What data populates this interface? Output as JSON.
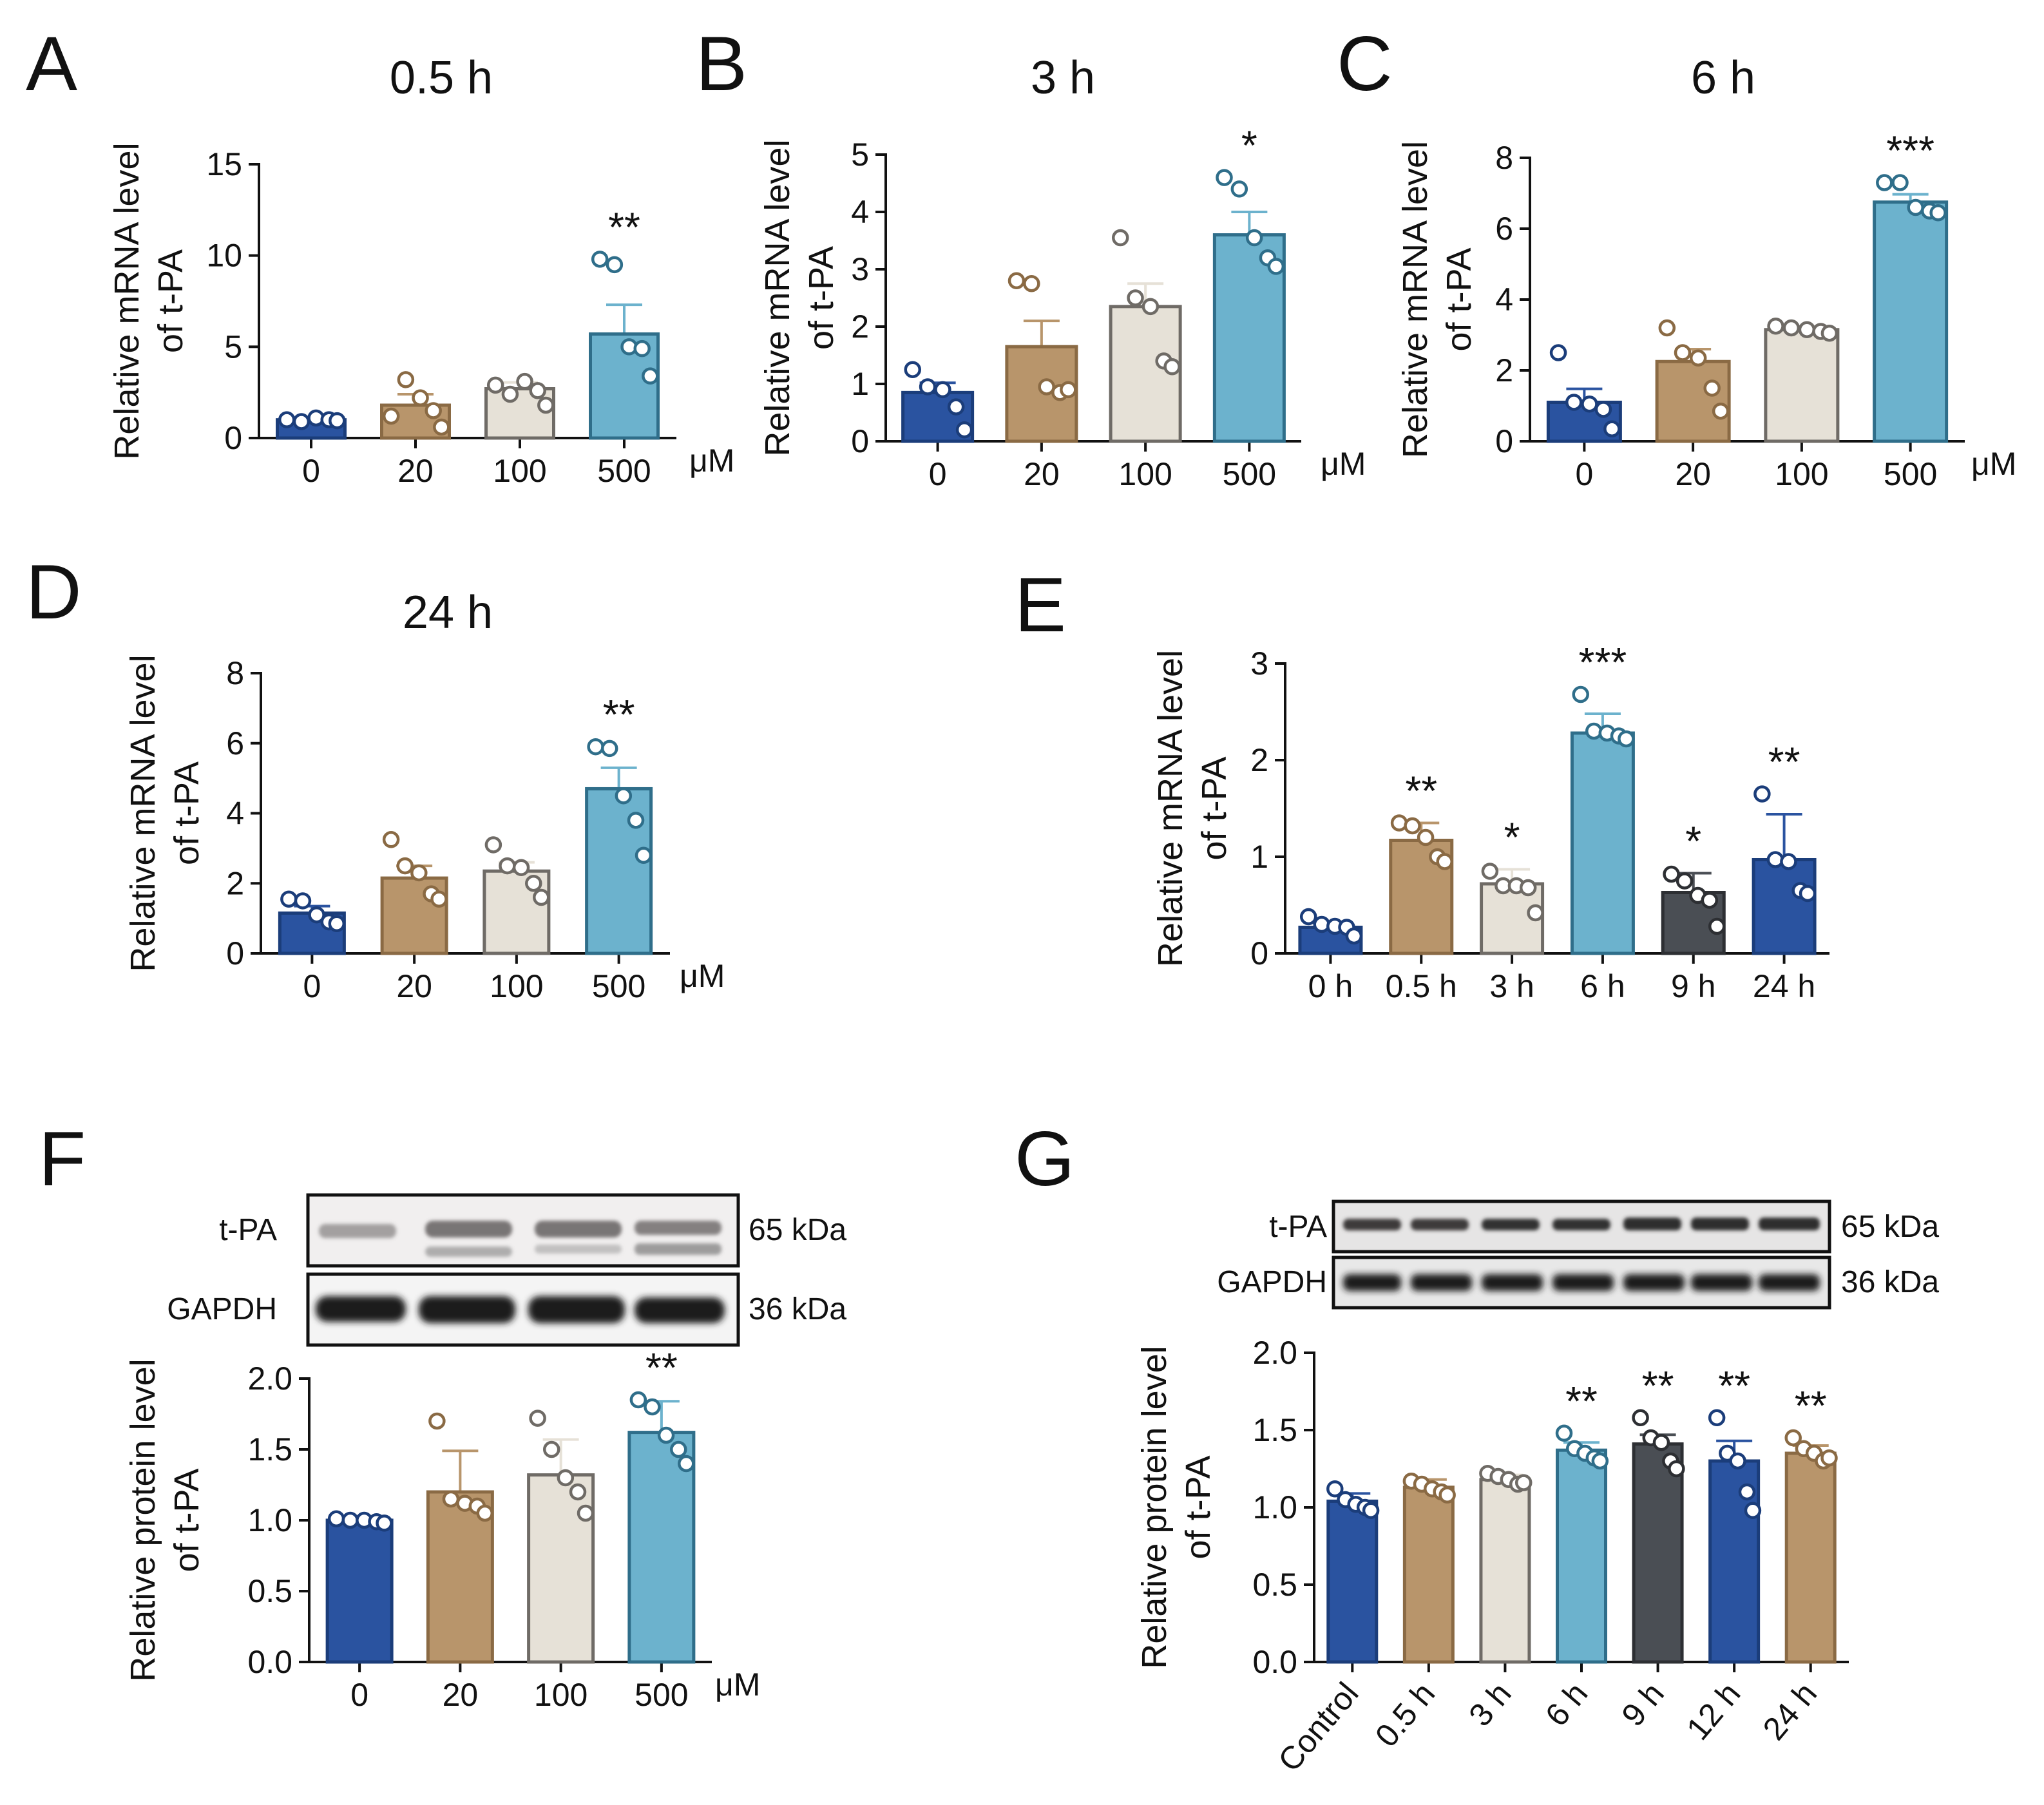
{
  "colors": {
    "dark_blue": "#2a53a0",
    "brown": "#b8956b",
    "beige": "#e6e1d7",
    "light_blue": "#6cb2cd",
    "dark_gray": "#4a4e54"
  },
  "chart_data": [
    {
      "panel": "A",
      "type": "bar",
      "title": "0.5 h",
      "ylabel": [
        "Relative mRNA level",
        "of t-PA"
      ],
      "categories": [
        "0",
        "20",
        "100",
        "500"
      ],
      "unit": "μM",
      "ylim": [
        0,
        15
      ],
      "yticks": [
        "0",
        "5",
        "10",
        "15"
      ],
      "values": [
        1.0,
        1.8,
        2.7,
        5.7
      ],
      "errors": [
        0.1,
        0.6,
        0.35,
        1.6
      ],
      "points": [
        [
          1.0,
          0.9,
          1.1,
          1.0,
          0.95
        ],
        [
          1.2,
          3.2,
          2.2,
          1.5,
          0.6
        ],
        [
          2.9,
          2.4,
          3.1,
          2.6,
          1.8
        ],
        [
          9.8,
          9.5,
          5.0,
          4.9,
          3.4
        ]
      ],
      "significance": [
        "",
        "",
        "",
        "**"
      ],
      "colors": [
        "dark_blue",
        "brown",
        "beige",
        "light_blue"
      ]
    },
    {
      "panel": "B",
      "type": "bar",
      "title": "3 h",
      "ylabel": [
        "Relative mRNA level",
        "of t-PA"
      ],
      "categories": [
        "0",
        "20",
        "100",
        "500"
      ],
      "unit": "μM",
      "ylim": [
        0,
        5
      ],
      "yticks": [
        "0",
        "1",
        "2",
        "3",
        "4",
        "5"
      ],
      "values": [
        0.85,
        1.65,
        2.35,
        3.6
      ],
      "errors": [
        0.17,
        0.45,
        0.4,
        0.4
      ],
      "points": [
        [
          1.25,
          0.95,
          0.9,
          0.6,
          0.2
        ],
        [
          2.8,
          2.75,
          0.95,
          0.85,
          0.9
        ],
        [
          3.55,
          2.5,
          2.35,
          1.4,
          1.3
        ],
        [
          4.6,
          4.4,
          3.55,
          3.2,
          3.05
        ]
      ],
      "significance": [
        "",
        "",
        "",
        "*"
      ],
      "colors": [
        "dark_blue",
        "brown",
        "beige",
        "light_blue"
      ]
    },
    {
      "panel": "C",
      "type": "bar",
      "title": "6 h",
      "ylabel": [
        "Relative mRNA level",
        "of t-PA"
      ],
      "categories": [
        "0",
        "20",
        "100",
        "500"
      ],
      "unit": "μM",
      "ylim": [
        0,
        8
      ],
      "yticks": [
        "0",
        "2",
        "4",
        "6",
        "8"
      ],
      "values": [
        1.1,
        2.25,
        3.15,
        6.75
      ],
      "errors": [
        0.38,
        0.35,
        0.07,
        0.22
      ],
      "points": [
        [
          2.5,
          1.1,
          1.05,
          0.9,
          0.35
        ],
        [
          3.2,
          2.5,
          2.35,
          1.5,
          0.85
        ],
        [
          3.25,
          3.2,
          3.15,
          3.1,
          3.05
        ],
        [
          7.3,
          7.3,
          6.6,
          6.5,
          6.45
        ]
      ],
      "significance": [
        "",
        "",
        "",
        "***"
      ],
      "colors": [
        "dark_blue",
        "brown",
        "beige",
        "light_blue"
      ]
    },
    {
      "panel": "D",
      "type": "bar",
      "title": "24 h",
      "ylabel": [
        "Relative mRNA level",
        "of t-PA"
      ],
      "categories": [
        "0",
        "20",
        "100",
        "500"
      ],
      "unit": "μM",
      "ylim": [
        0,
        8
      ],
      "yticks": [
        "0",
        "2",
        "4",
        "6",
        "8"
      ],
      "values": [
        1.15,
        2.15,
        2.35,
        4.7
      ],
      "errors": [
        0.2,
        0.35,
        0.25,
        0.6
      ],
      "points": [
        [
          1.55,
          1.5,
          1.1,
          0.9,
          0.85
        ],
        [
          3.25,
          2.5,
          2.3,
          1.7,
          1.55
        ],
        [
          3.1,
          2.5,
          2.45,
          2.0,
          1.6
        ],
        [
          5.9,
          5.85,
          4.5,
          3.8,
          2.8
        ]
      ],
      "significance": [
        "",
        "",
        "",
        "**"
      ],
      "colors": [
        "dark_blue",
        "brown",
        "beige",
        "light_blue"
      ]
    },
    {
      "panel": "E",
      "type": "bar",
      "ylabel": [
        "Relative mRNA level",
        "of t-PA"
      ],
      "categories": [
        "0 h",
        "0.5 h",
        "3 h",
        "6 h",
        "9 h",
        "24 h"
      ],
      "ylim": [
        0,
        3
      ],
      "yticks": [
        "0",
        "1",
        "2",
        "3"
      ],
      "values": [
        0.27,
        1.17,
        0.72,
        2.28,
        0.63,
        0.97
      ],
      "errors": [
        0.05,
        0.18,
        0.15,
        0.2,
        0.2,
        0.47
      ],
      "points": [
        [
          0.38,
          0.3,
          0.28,
          0.27,
          0.18
        ],
        [
          1.35,
          1.32,
          1.2,
          1.0,
          0.95
        ],
        [
          0.85,
          0.7,
          0.7,
          0.68,
          0.42
        ],
        [
          2.68,
          2.3,
          2.28,
          2.25,
          2.22
        ],
        [
          0.82,
          0.75,
          0.6,
          0.55,
          0.28
        ],
        [
          1.65,
          0.97,
          0.95,
          0.65,
          0.62
        ]
      ],
      "significance": [
        "",
        "**",
        "*",
        "***",
        "*",
        "**"
      ],
      "colors": [
        "dark_blue",
        "brown",
        "beige",
        "light_blue",
        "dark_gray",
        "dark_blue"
      ]
    },
    {
      "panel": "F",
      "type": "bar",
      "ylabel": [
        "Relative protein level",
        "of t-PA"
      ],
      "categories": [
        "0",
        "20",
        "100",
        "500"
      ],
      "unit": "μM",
      "ylim": [
        0,
        2.0
      ],
      "yticks": [
        "0.0",
        "0.5",
        "1.0",
        "1.5",
        "2.0"
      ],
      "values": [
        1.0,
        1.2,
        1.32,
        1.62
      ],
      "errors": [
        0.01,
        0.29,
        0.25,
        0.22
      ],
      "points": [
        [
          1.01,
          1.0,
          1.0,
          0.99,
          0.98
        ],
        [
          1.7,
          1.15,
          1.12,
          1.1,
          1.05
        ],
        [
          1.72,
          1.5,
          1.3,
          1.2,
          1.05
        ],
        [
          1.85,
          1.8,
          1.6,
          1.5,
          1.4
        ]
      ],
      "significance": [
        "",
        "",
        "",
        "**"
      ],
      "colors": [
        "dark_blue",
        "brown",
        "beige",
        "light_blue"
      ]
    },
    {
      "panel": "G",
      "type": "bar",
      "ylabel": [
        "Relative protein level",
        "of t-PA"
      ],
      "categories": [
        "Control",
        "0.5 h",
        "3 h",
        "6 h",
        "9 h",
        "12 h",
        "24 h"
      ],
      "ylim": [
        0,
        2.0
      ],
      "yticks": [
        "0.0",
        "0.5",
        "1.0",
        "1.5",
        "2.0"
      ],
      "values": [
        1.04,
        1.13,
        1.18,
        1.37,
        1.41,
        1.3,
        1.35
      ],
      "errors": [
        0.05,
        0.05,
        0.03,
        0.05,
        0.06,
        0.13,
        0.05
      ],
      "points": [
        [
          1.12,
          1.05,
          1.02,
          1.0,
          0.98
        ],
        [
          1.17,
          1.15,
          1.12,
          1.1,
          1.08
        ],
        [
          1.22,
          1.2,
          1.18,
          1.15,
          1.16
        ],
        [
          1.48,
          1.38,
          1.35,
          1.32,
          1.3
        ],
        [
          1.58,
          1.45,
          1.42,
          1.3,
          1.25
        ],
        [
          1.58,
          1.35,
          1.3,
          1.1,
          0.98
        ],
        [
          1.45,
          1.38,
          1.35,
          1.3,
          1.32
        ]
      ],
      "significance": [
        "",
        "",
        "",
        "**",
        "**",
        "**",
        "**"
      ],
      "colors": [
        "dark_blue",
        "brown",
        "beige",
        "light_blue",
        "dark_gray",
        "dark_blue",
        "brown"
      ]
    }
  ],
  "blots": {
    "F": {
      "rows": [
        {
          "label": "t-PA",
          "kda": "65 kDa"
        },
        {
          "label": "GAPDH",
          "kda": "36 kDa"
        }
      ]
    },
    "G": {
      "rows": [
        {
          "label": "t-PA",
          "kda": "65 kDa"
        },
        {
          "label": "GAPDH",
          "kda": "36 kDa"
        }
      ]
    }
  }
}
